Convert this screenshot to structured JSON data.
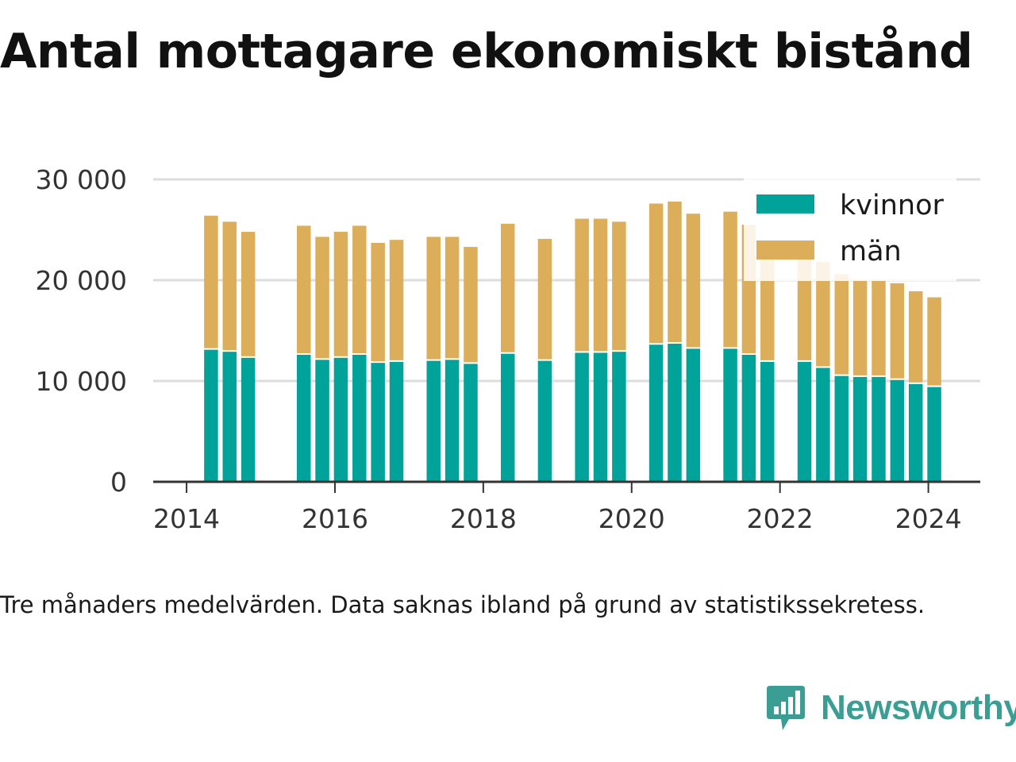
{
  "title": "Antal mottagare ekonomiskt bistånd",
  "note": "Tre månaders medelvärden. Data saknas ibland på grund av statistikssekretess.",
  "brand": {
    "name": "Newsworthy",
    "color": "#3a9e94",
    "icon": "newsworthy-logo-icon"
  },
  "chart_data": {
    "type": "bar",
    "stacked": true,
    "y_ticks": [
      0,
      10000,
      20000,
      30000
    ],
    "y_tick_labels": [
      "0",
      "10 000",
      "20 000",
      "30 000"
    ],
    "x_ticks": [
      2014,
      2016,
      2018,
      2020,
      2022,
      2024
    ],
    "x_tick_labels": [
      "2014",
      "2016",
      "2018",
      "2020",
      "2022",
      "2024"
    ],
    "ylim": [
      0,
      30000
    ],
    "xlim": [
      2013.55,
      2024.7
    ],
    "grid": true,
    "legend_position": "top-right",
    "x": [
      2014.33,
      2014.58,
      2014.83,
      2015.58,
      2015.83,
      2016.08,
      2016.33,
      2016.58,
      2016.83,
      2017.33,
      2017.58,
      2017.83,
      2018.33,
      2018.83,
      2019.33,
      2019.58,
      2019.83,
      2020.33,
      2020.58,
      2020.83,
      2021.33,
      2021.58,
      2021.83,
      2022.33,
      2022.58,
      2022.83,
      2023.08,
      2023.33,
      2023.58,
      2023.83,
      2024.08
    ],
    "series": [
      {
        "name": "kvinnor",
        "color": "#00a39a",
        "values": [
          13100,
          12900,
          12300,
          12600,
          12100,
          12300,
          12600,
          11800,
          11900,
          12000,
          12100,
          11700,
          12700,
          12000,
          12800,
          12800,
          12900,
          13600,
          13700,
          13200,
          13200,
          12600,
          11900,
          11900,
          11300,
          10500,
          10400,
          10400,
          10100,
          9700,
          9400
        ]
      },
      {
        "name": "män",
        "color": "#dcae5a",
        "values": [
          13300,
          12900,
          12500,
          12800,
          12200,
          12500,
          12800,
          11900,
          12100,
          12300,
          12200,
          11600,
          12900,
          12100,
          13300,
          13300,
          12900,
          14000,
          14100,
          13400,
          13600,
          12900,
          10100,
          10200,
          10500,
          10100,
          9600,
          9600,
          9600,
          9200,
          8900
        ]
      }
    ]
  }
}
